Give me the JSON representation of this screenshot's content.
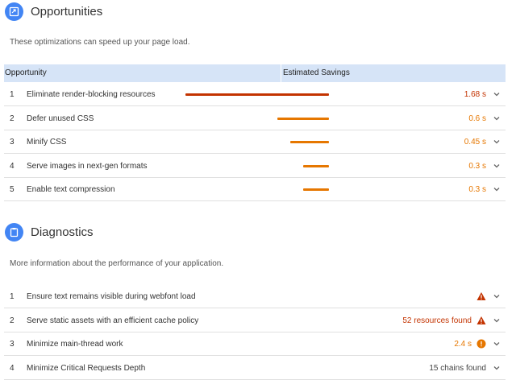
{
  "opportunities": {
    "title": "Opportunities",
    "description": "These optimizations can speed up your page load.",
    "col_opportunity": "Opportunity",
    "col_savings": "Estimated Savings",
    "items": [
      {
        "num": "1",
        "title": "Eliminate render-blocking resources",
        "value": "1.68 s",
        "severity": "red",
        "fraction": 1.0
      },
      {
        "num": "2",
        "title": "Defer unused CSS",
        "value": "0.6 s",
        "severity": "orange",
        "fraction": 0.36
      },
      {
        "num": "3",
        "title": "Minify CSS",
        "value": "0.45 s",
        "severity": "orange",
        "fraction": 0.27
      },
      {
        "num": "4",
        "title": "Serve images in next-gen formats",
        "value": "0.3 s",
        "severity": "orange",
        "fraction": 0.18
      },
      {
        "num": "5",
        "title": "Enable text compression",
        "value": "0.3 s",
        "severity": "orange",
        "fraction": 0.18
      }
    ]
  },
  "diagnostics": {
    "title": "Diagnostics",
    "description": "More information about the performance of your application.",
    "items": [
      {
        "num": "1",
        "title": "Ensure text remains visible during webfont load",
        "value": "",
        "icon": "warning-triangle-icon"
      },
      {
        "num": "2",
        "title": "Serve static assets with an efficient cache policy",
        "value": "52 resources found",
        "icon": "warning-triangle-icon"
      },
      {
        "num": "3",
        "title": "Minimize main-thread work",
        "value": "2.4 s",
        "icon": "info-circle-icon"
      },
      {
        "num": "4",
        "title": "Minimize Critical Requests Depth",
        "value": "15 chains found",
        "icon": ""
      }
    ]
  },
  "colors": {
    "red": "#c33300",
    "orange": "#e67700",
    "accent": "#4285f4",
    "header_bg": "#d6e4f7"
  }
}
